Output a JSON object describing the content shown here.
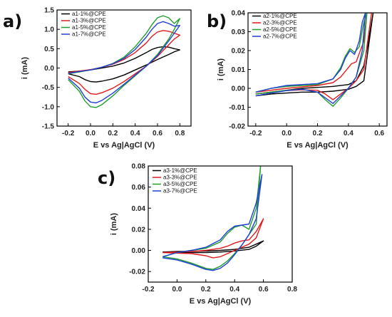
{
  "chart_data": [
    {
      "panel": "a)",
      "type": "line",
      "xlabel": "E vs Ag|AgCl (V)",
      "ylabel": "i (mA)",
      "xlim": [
        -0.3,
        0.9
      ],
      "ylim": [
        -1.5,
        1.5
      ],
      "xticks": [
        -0.2,
        0.0,
        0.2,
        0.4,
        0.6,
        0.8
      ],
      "yticks": [
        -1.5,
        -1.0,
        -0.5,
        0.0,
        0.5,
        1.0,
        1.5
      ],
      "xtick_labels": [
        "-0.2",
        "0.0",
        "0.2",
        "0.4",
        "0.6",
        "0.8"
      ],
      "ytick_labels": [
        "-1.5",
        "-1.0",
        "-0.5",
        "0.0",
        "0.5",
        "1.0",
        "1.5"
      ],
      "legend_position": "top-left",
      "series": [
        {
          "name": "a1-1%@CPE",
          "color": "#000000",
          "x": [
            -0.2,
            -0.1,
            0.0,
            0.1,
            0.2,
            0.3,
            0.4,
            0.5,
            0.55,
            0.6,
            0.65,
            0.7,
            0.75,
            0.8,
            0.75,
            0.7,
            0.6,
            0.5,
            0.4,
            0.3,
            0.2,
            0.1,
            0.05,
            0.0,
            -0.05,
            -0.1,
            -0.2
          ],
          "y": [
            -0.1,
            -0.08,
            -0.05,
            0.0,
            0.05,
            0.13,
            0.25,
            0.4,
            0.48,
            0.53,
            0.55,
            0.54,
            0.5,
            0.47,
            0.42,
            0.35,
            0.22,
            0.08,
            -0.05,
            -0.18,
            -0.28,
            -0.34,
            -0.36,
            -0.35,
            -0.3,
            -0.22,
            -0.15
          ]
        },
        {
          "name": "a1-3%@CPE",
          "color": "#e31a1c",
          "x": [
            -0.2,
            -0.1,
            0.0,
            0.1,
            0.2,
            0.3,
            0.4,
            0.5,
            0.55,
            0.6,
            0.65,
            0.7,
            0.75,
            0.8,
            0.75,
            0.7,
            0.6,
            0.5,
            0.4,
            0.3,
            0.2,
            0.1,
            0.05,
            0.0,
            -0.05,
            -0.1,
            -0.2
          ],
          "y": [
            -0.12,
            -0.08,
            -0.04,
            0.02,
            0.1,
            0.22,
            0.4,
            0.65,
            0.82,
            0.93,
            0.97,
            0.95,
            0.9,
            0.85,
            0.75,
            0.6,
            0.3,
            0.05,
            -0.15,
            -0.35,
            -0.52,
            -0.64,
            -0.68,
            -0.66,
            -0.55,
            -0.4,
            -0.22
          ]
        },
        {
          "name": "a1-5%@CPE",
          "color": "#1f9e2c",
          "x": [
            -0.2,
            -0.1,
            0.0,
            0.1,
            0.2,
            0.3,
            0.4,
            0.5,
            0.55,
            0.6,
            0.65,
            0.7,
            0.75,
            0.8,
            0.75,
            0.7,
            0.6,
            0.5,
            0.4,
            0.3,
            0.2,
            0.1,
            0.05,
            0.0,
            -0.05,
            -0.1,
            -0.2
          ],
          "y": [
            -0.15,
            -0.1,
            -0.05,
            0.02,
            0.12,
            0.28,
            0.55,
            0.9,
            1.12,
            1.3,
            1.35,
            1.3,
            1.15,
            1.28,
            1.0,
            0.75,
            0.35,
            0.05,
            -0.2,
            -0.45,
            -0.72,
            -0.95,
            -1.02,
            -1.0,
            -0.85,
            -0.6,
            -0.3
          ]
        },
        {
          "name": "a1-7%@CPE",
          "color": "#1f3fd6",
          "x": [
            -0.2,
            -0.1,
            0.0,
            0.1,
            0.2,
            0.3,
            0.4,
            0.5,
            0.55,
            0.6,
            0.65,
            0.7,
            0.75,
            0.8,
            0.75,
            0.7,
            0.6,
            0.5,
            0.4,
            0.3,
            0.2,
            0.1,
            0.05,
            0.0,
            -0.05,
            -0.1,
            -0.2
          ],
          "y": [
            -0.14,
            -0.09,
            -0.05,
            0.02,
            0.11,
            0.25,
            0.48,
            0.8,
            1.0,
            1.15,
            1.2,
            1.15,
            1.08,
            1.1,
            0.9,
            0.7,
            0.32,
            0.05,
            -0.18,
            -0.42,
            -0.65,
            -0.84,
            -0.9,
            -0.88,
            -0.75,
            -0.52,
            -0.26
          ]
        }
      ]
    },
    {
      "panel": "b)",
      "type": "line",
      "xlabel": "E vs Ag|AgCl (V)",
      "ylabel": "i (mA)",
      "xlim": [
        -0.25,
        0.65
      ],
      "ylim": [
        -0.02,
        0.04
      ],
      "xticks": [
        -0.2,
        0.0,
        0.2,
        0.4,
        0.6
      ],
      "yticks": [
        -0.02,
        -0.01,
        0.0,
        0.01,
        0.02,
        0.03,
        0.04
      ],
      "xtick_labels": [
        "-0.2",
        "0.0",
        "0.2",
        "0.4",
        "0.6"
      ],
      "ytick_labels": [
        "-0.02",
        "-0.01",
        "0.00",
        "0.01",
        "0.02",
        "0.03",
        "0.04"
      ],
      "legend_position": "top-left",
      "series": [
        {
          "name": "a2-1%@CPE",
          "color": "#000000",
          "x": [
            -0.2,
            -0.1,
            0.0,
            0.1,
            0.2,
            0.3,
            0.4,
            0.45,
            0.5,
            0.53,
            0.56,
            0.5,
            0.45,
            0.4,
            0.35,
            0.3,
            0.2,
            0.1,
            0.0,
            -0.1,
            -0.2
          ],
          "y": [
            -0.003,
            -0.002,
            -0.001,
            0.0,
            0.0005,
            0.001,
            0.002,
            0.004,
            0.012,
            0.025,
            0.04,
            0.004,
            0.001,
            -0.0005,
            -0.001,
            -0.0015,
            -0.002,
            -0.002,
            -0.0025,
            -0.003,
            -0.004
          ]
        },
        {
          "name": "a2-3%@CPE",
          "color": "#e31a1c",
          "x": [
            -0.2,
            -0.1,
            0.0,
            0.1,
            0.2,
            0.3,
            0.35,
            0.4,
            0.42,
            0.45,
            0.5,
            0.52,
            0.55,
            0.5,
            0.45,
            0.4,
            0.35,
            0.3,
            0.25,
            0.2,
            0.1,
            0.0,
            -0.1,
            -0.2
          ],
          "y": [
            -0.002,
            -0.001,
            0.0,
            0.0008,
            0.0015,
            0.003,
            0.006,
            0.011,
            0.013,
            0.014,
            0.025,
            0.04,
            0.04,
            0.01,
            0.004,
            0.0,
            -0.003,
            -0.006,
            -0.003,
            -0.001,
            -0.0008,
            -0.0012,
            -0.002,
            -0.003
          ]
        },
        {
          "name": "a2-5%@CPE",
          "color": "#1f9e2c",
          "x": [
            -0.2,
            -0.1,
            0.0,
            0.1,
            0.2,
            0.3,
            0.35,
            0.38,
            0.41,
            0.44,
            0.47,
            0.5,
            0.52,
            0.5,
            0.45,
            0.4,
            0.35,
            0.3,
            0.25,
            0.2,
            0.1,
            0.0,
            -0.1,
            -0.2
          ],
          "y": [
            -0.002,
            0.0,
            0.001,
            0.0015,
            0.002,
            0.005,
            0.011,
            0.017,
            0.021,
            0.019,
            0.022,
            0.035,
            0.04,
            0.02,
            0.006,
            0.0,
            -0.005,
            -0.0095,
            -0.006,
            -0.002,
            -0.0005,
            -0.001,
            -0.002,
            -0.003
          ]
        },
        {
          "name": "a2-7%@CPE",
          "color": "#1f3fd6",
          "x": [
            -0.2,
            -0.1,
            0.0,
            0.1,
            0.2,
            0.3,
            0.35,
            0.38,
            0.41,
            0.44,
            0.47,
            0.49,
            0.51,
            0.49,
            0.45,
            0.4,
            0.35,
            0.3,
            0.25,
            0.2,
            0.1,
            0.0,
            -0.1,
            -0.2
          ],
          "y": [
            -0.002,
            0.0,
            0.0015,
            0.002,
            0.0025,
            0.005,
            0.01,
            0.016,
            0.02,
            0.018,
            0.025,
            0.035,
            0.04,
            0.02,
            0.006,
            0.0,
            -0.004,
            -0.008,
            -0.005,
            -0.002,
            -0.0005,
            -0.0012,
            -0.0025,
            -0.004
          ]
        }
      ]
    },
    {
      "panel": "c)",
      "type": "line",
      "xlabel": "E vs Ag|AgCl (V)",
      "ylabel": "i (mA)",
      "xlim": [
        -0.2,
        0.8
      ],
      "ylim": [
        -0.03,
        0.08
      ],
      "xticks": [
        -0.2,
        0.0,
        0.2,
        0.4,
        0.6,
        0.8
      ],
      "yticks": [
        -0.02,
        0.0,
        0.02,
        0.04,
        0.06,
        0.08
      ],
      "xtick_labels": [
        "-0.2",
        "0.0",
        "0.2",
        "0.4",
        "0.6",
        "0.8"
      ],
      "ytick_labels": [
        "-0.02",
        "0.00",
        "0.02",
        "0.04",
        "0.06",
        "0.08"
      ],
      "legend_position": "top-left",
      "series": [
        {
          "name": "a3-1%@CPE",
          "color": "#000000",
          "x": [
            -0.1,
            0.0,
            0.1,
            0.2,
            0.3,
            0.4,
            0.5,
            0.55,
            0.6,
            0.55,
            0.5,
            0.4,
            0.3,
            0.2,
            0.1,
            0.0,
            -0.1
          ],
          "y": [
            -0.0015,
            -0.001,
            -0.0008,
            -0.0005,
            0.0,
            0.001,
            0.003,
            0.006,
            0.009,
            0.004,
            0.001,
            -0.0005,
            -0.0015,
            -0.002,
            -0.002,
            -0.0018,
            -0.0015
          ]
        },
        {
          "name": "a3-3%@CPE",
          "color": "#e31a1c",
          "x": [
            -0.1,
            0.0,
            0.1,
            0.2,
            0.3,
            0.35,
            0.4,
            0.45,
            0.5,
            0.55,
            0.6,
            0.55,
            0.5,
            0.45,
            0.4,
            0.35,
            0.3,
            0.25,
            0.2,
            0.1,
            0.0,
            -0.1
          ],
          "y": [
            -0.002,
            -0.0015,
            -0.001,
            0.0,
            0.002,
            0.004,
            0.007,
            0.009,
            0.01,
            0.018,
            0.03,
            0.012,
            0.006,
            0.003,
            0.0,
            -0.003,
            -0.006,
            -0.007,
            -0.005,
            -0.003,
            -0.0025,
            -0.002
          ]
        },
        {
          "name": "a3-5%@CPE",
          "color": "#1f9e2c",
          "x": [
            -0.1,
            0.0,
            0.1,
            0.2,
            0.3,
            0.35,
            0.4,
            0.45,
            0.5,
            0.55,
            0.58,
            0.55,
            0.5,
            0.45,
            0.4,
            0.35,
            0.3,
            0.25,
            0.2,
            0.1,
            0.0,
            -0.1
          ],
          "y": [
            -0.006,
            -0.002,
            0.0,
            0.002,
            0.008,
            0.016,
            0.022,
            0.024,
            0.02,
            0.04,
            0.08,
            0.025,
            0.015,
            0.005,
            -0.003,
            -0.01,
            -0.015,
            -0.018,
            -0.017,
            -0.012,
            -0.008,
            -0.006
          ]
        },
        {
          "name": "a3-7%@CPE",
          "color": "#1f3fd6",
          "x": [
            -0.1,
            0.0,
            0.1,
            0.2,
            0.3,
            0.35,
            0.4,
            0.45,
            0.5,
            0.55,
            0.59,
            0.55,
            0.5,
            0.45,
            0.4,
            0.35,
            0.3,
            0.25,
            0.2,
            0.1,
            0.0,
            -0.1
          ],
          "y": [
            -0.006,
            -0.002,
            0.0,
            0.003,
            0.01,
            0.018,
            0.023,
            0.024,
            0.025,
            0.045,
            0.072,
            0.03,
            0.015,
            0.005,
            -0.004,
            -0.012,
            -0.017,
            -0.019,
            -0.018,
            -0.013,
            -0.009,
            -0.007
          ]
        }
      ]
    }
  ]
}
